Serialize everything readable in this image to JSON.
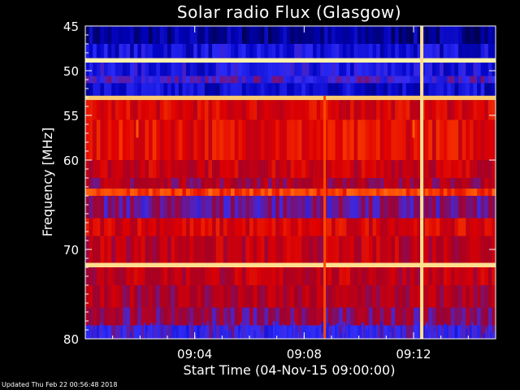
{
  "chart_data": {
    "type": "heatmap",
    "title": "Solar radio Flux (Glasgow)",
    "xlabel": "Start Time (04-Nov-15 09:00:00)",
    "ylabel": "Frequency [MHz]",
    "x_unit": "minutes after 09:00:00",
    "xlim": [
      0,
      15.0
    ],
    "ylim": [
      45,
      80
    ],
    "y_reversed": true,
    "x_ticks": [
      {
        "value": 4,
        "label": "09:04"
      },
      {
        "value": 8,
        "label": "09:08"
      },
      {
        "value": 12,
        "label": "09:12"
      }
    ],
    "y_ticks": [
      {
        "value": 45,
        "label": "45"
      },
      {
        "value": 50,
        "label": "50"
      },
      {
        "value": 55,
        "label": "55"
      },
      {
        "value": 60,
        "label": "60"
      },
      {
        "value": 70,
        "label": "70"
      },
      {
        "value": 80,
        "label": "80"
      }
    ],
    "colormap": [
      "#000040",
      "#0000c0",
      "#3030ff",
      "#a00028",
      "#e00000",
      "#ff5000",
      "#ffa030",
      "#ffffc0"
    ],
    "frequency_bands": [
      {
        "from": 45,
        "to": 47,
        "level": 0.1
      },
      {
        "from": 47,
        "to": 48.6,
        "level": 0.2
      },
      {
        "from": 48.6,
        "to": 49.1,
        "level": 0.98
      },
      {
        "from": 49.1,
        "to": 50.6,
        "level": 0.22
      },
      {
        "from": 50.6,
        "to": 51.4,
        "level": 0.3
      },
      {
        "from": 51.4,
        "to": 52.8,
        "level": 0.18
      },
      {
        "from": 52.8,
        "to": 53.3,
        "level": 0.92
      },
      {
        "from": 53.3,
        "to": 55.5,
        "level": 0.55
      },
      {
        "from": 55.5,
        "to": 60.0,
        "level": 0.58
      },
      {
        "from": 60.0,
        "to": 62.0,
        "level": 0.52
      },
      {
        "from": 62.0,
        "to": 63.2,
        "level": 0.45
      },
      {
        "from": 63.2,
        "to": 64.0,
        "level": 0.68
      },
      {
        "from": 64.0,
        "to": 66.5,
        "level": 0.36
      },
      {
        "from": 66.5,
        "to": 68.5,
        "level": 0.55
      },
      {
        "from": 68.5,
        "to": 71.5,
        "level": 0.5
      },
      {
        "from": 71.5,
        "to": 72.0,
        "level": 0.95
      },
      {
        "from": 72.0,
        "to": 74.0,
        "level": 0.5
      },
      {
        "from": 74.0,
        "to": 76.5,
        "level": 0.46
      },
      {
        "from": 76.5,
        "to": 78.5,
        "level": 0.4
      },
      {
        "from": 78.5,
        "to": 80,
        "level": 0.3
      }
    ],
    "events": [
      {
        "x": 12.3,
        "from": 45,
        "to": 80,
        "level": 0.95
      },
      {
        "x": 8.75,
        "from": 52.8,
        "to": 80,
        "level": 0.7
      },
      {
        "x": 1.9,
        "from": 55.5,
        "to": 57.5,
        "level": 0.72
      },
      {
        "x": 12.0,
        "from": 55.5,
        "to": 57.5,
        "level": 0.72
      }
    ]
  },
  "footer": {
    "updated": "Updated Thu Feb 22 00:56:48 2018"
  }
}
